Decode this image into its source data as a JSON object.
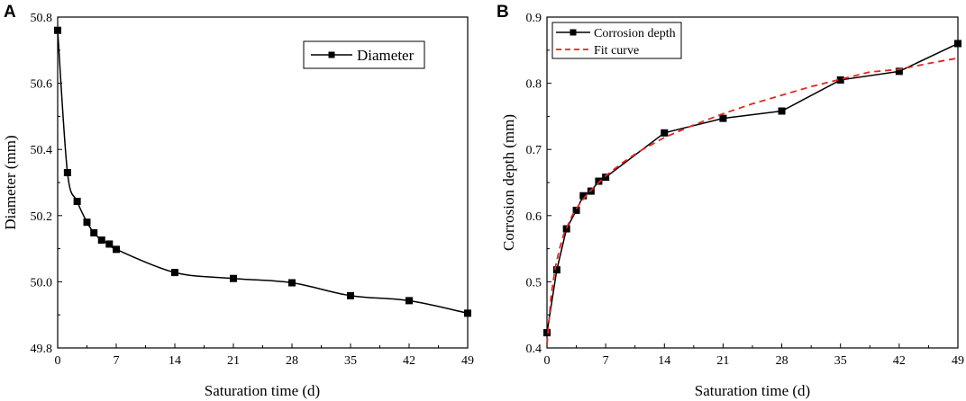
{
  "chart_data": [
    {
      "panel": "A",
      "type": "line",
      "xlabel": "Saturation time (d)",
      "ylabel": "Diameter (mm)",
      "xlim": [
        0,
        49
      ],
      "ylim": [
        49.8,
        50.8
      ],
      "xticks": [
        0,
        7,
        14,
        21,
        28,
        35,
        42,
        49
      ],
      "yticks": [
        "49.8",
        "50.0",
        "50.2",
        "50.4",
        "50.6",
        "50.8"
      ],
      "legend_position": "top-right",
      "series": [
        {
          "name": "Diameter",
          "color": "#000000",
          "style": "solid-smooth",
          "marker": "square",
          "x": [
            0,
            1.17,
            2.33,
            3.5,
            4.33,
            5.25,
            6.17,
            7,
            14,
            21,
            28,
            35,
            42,
            49
          ],
          "y": [
            50.76,
            50.33,
            50.243,
            50.18,
            50.148,
            50.126,
            50.114,
            50.098,
            50.028,
            50.01,
            49.997,
            49.958,
            49.943,
            49.905
          ]
        }
      ]
    },
    {
      "panel": "B",
      "type": "line",
      "xlabel": "Saturation time (d)",
      "ylabel": "Corrosion depth (mm)",
      "xlim": [
        0,
        49
      ],
      "ylim": [
        0.4,
        0.9
      ],
      "xticks": [
        0,
        7,
        14,
        21,
        28,
        35,
        42,
        49
      ],
      "yticks": [
        "0.4",
        "0.5",
        "0.6",
        "0.7",
        "0.8",
        "0.9"
      ],
      "legend_position": "top-left",
      "series": [
        {
          "name": "Corrosion depth",
          "color": "#000000",
          "style": "solid",
          "marker": "square",
          "x": [
            0,
            1.17,
            2.33,
            3.5,
            4.33,
            5.25,
            6.17,
            7,
            14,
            21,
            28,
            35,
            42,
            49
          ],
          "y": [
            0.423,
            0.518,
            0.58,
            0.608,
            0.63,
            0.637,
            0.652,
            0.658,
            0.725,
            0.747,
            0.758,
            0.805,
            0.818,
            0.86
          ]
        },
        {
          "name": "Fit curve",
          "color": "#e8231f",
          "style": "dashed",
          "marker": "none",
          "x": [
            0,
            0.5,
            1,
            1.5,
            2,
            3,
            4,
            5,
            6,
            7,
            9,
            11,
            14,
            17.5,
            21,
            24.5,
            28,
            31.5,
            35,
            38.5,
            42,
            45.5,
            49
          ],
          "y": [
            0.405,
            0.48,
            0.522,
            0.55,
            0.572,
            0.6,
            0.62,
            0.635,
            0.648,
            0.66,
            0.68,
            0.697,
            0.718,
            0.737,
            0.754,
            0.769,
            0.782,
            0.795,
            0.806,
            0.817,
            0.821,
            0.83,
            0.838
          ]
        }
      ]
    }
  ]
}
